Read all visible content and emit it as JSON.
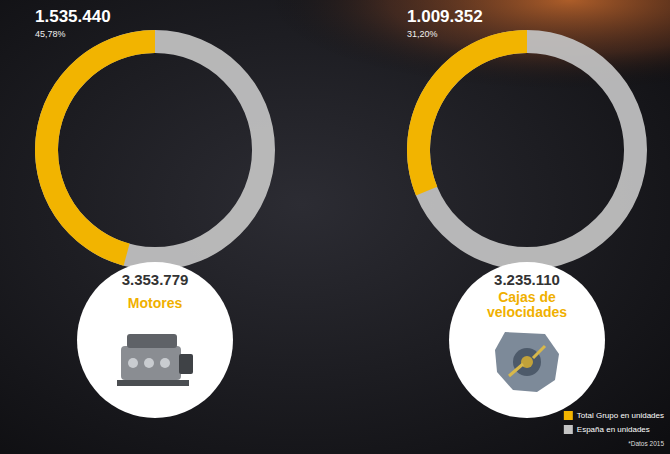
{
  "chart_data": [
    {
      "type": "pie",
      "title": "Motores",
      "values": [
        1535440
      ],
      "value_labels": [
        "1.535.440"
      ],
      "percent": 45.78,
      "percent_label": "45,78%",
      "total": 3353779,
      "total_label": "3.353.779"
    },
    {
      "type": "pie",
      "title": "Cajas de velocidades",
      "values": [
        1009352
      ],
      "value_labels": [
        "1.009.352"
      ],
      "percent": 31.2,
      "percent_label": "31,20%",
      "total": 3235110,
      "total_label": "3.235.110"
    }
  ],
  "series": [
    {
      "name": "Total Grupo en unidades",
      "color": "#f2b400"
    },
    {
      "name": "España en unidades",
      "color": "#c4c4c4"
    }
  ],
  "legend": "lower right",
  "note": "*Datos 2015"
}
